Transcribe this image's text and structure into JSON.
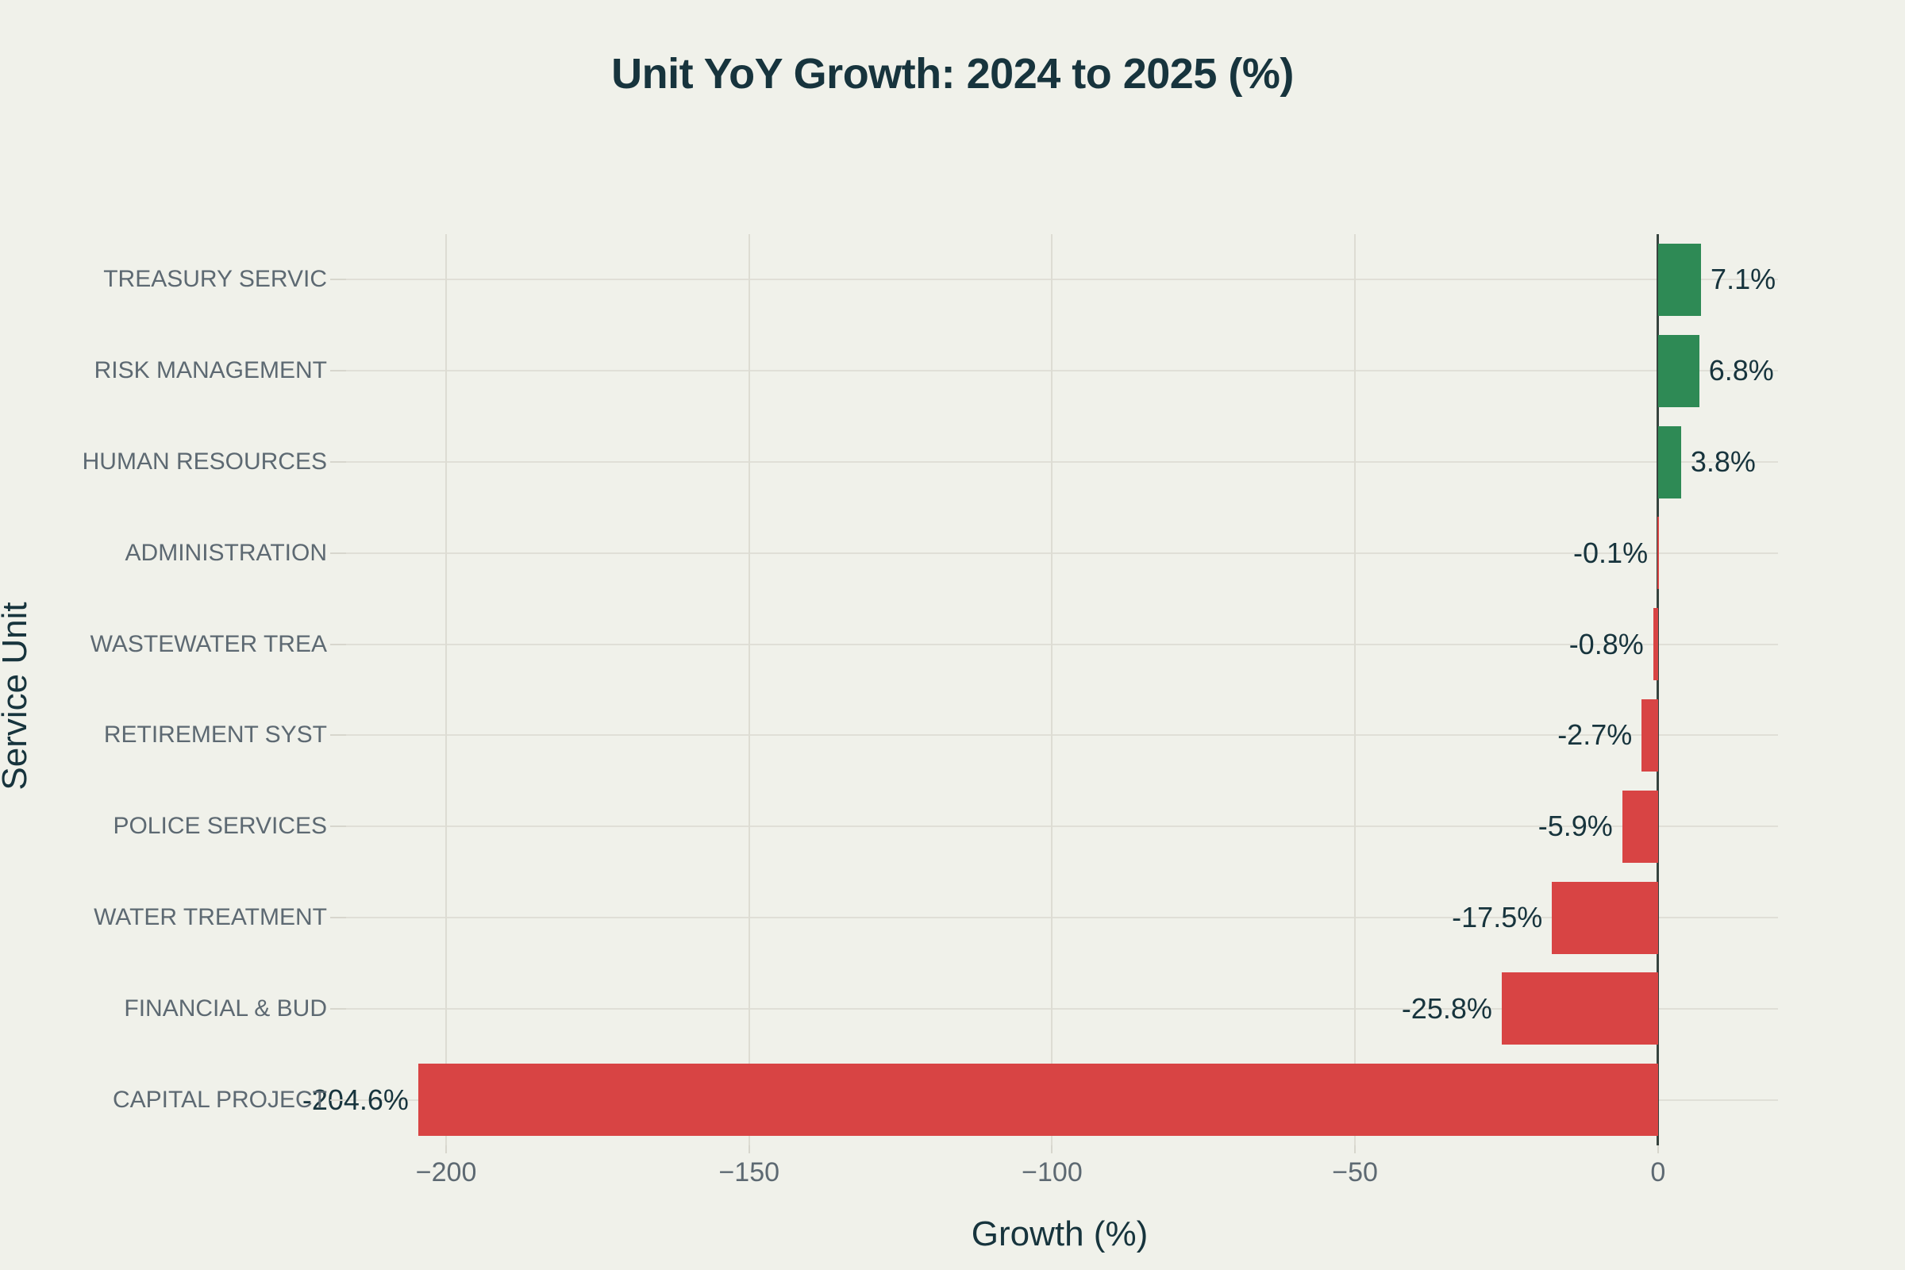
{
  "title": "Unit YoY Growth: 2024 to 2025 (%)",
  "axes": {
    "x_title": "Growth (%)",
    "y_title": "Service Unit"
  },
  "colors": {
    "background": "#f0f1ea",
    "positive_bar": "#2e8a55",
    "negative_bar": "#d84444",
    "grid": "#dddcd3",
    "zero_line": "#37443f",
    "title_text": "#17343d",
    "value_text": "#17343d",
    "tick_text": "#5d6972"
  },
  "chart_data": {
    "type": "bar",
    "orientation": "horizontal",
    "title": "Unit YoY Growth: 2024 to 2025 (%)",
    "xlabel": "Growth (%)",
    "ylabel": "Service Unit",
    "categories": [
      "TREASURY SERVIC",
      "RISK MANAGEMENT",
      "HUMAN RESOURCES",
      "ADMINISTRATION",
      "WASTEWATER TREA",
      "RETIREMENT SYST",
      "POLICE SERVICES",
      "WATER TREATMENT",
      "FINANCIAL & BUD",
      "CAPITAL PROJECT"
    ],
    "values": [
      7.1,
      6.8,
      3.8,
      -0.1,
      -0.8,
      -2.7,
      -5.9,
      -17.5,
      -25.8,
      -204.6
    ],
    "value_labels": [
      "7.1%",
      "6.8%",
      "3.8%",
      "-0.1%",
      "-0.8%",
      "-2.7%",
      "-5.9%",
      "-17.5%",
      "-25.8%",
      "-204.6%"
    ],
    "x_ticks": [
      -200,
      -150,
      -100,
      -50,
      0
    ],
    "x_tick_labels": [
      "−200",
      "−150",
      "−100",
      "−50",
      "0"
    ],
    "xlim": [
      -217.3,
      19.8
    ],
    "grid": true,
    "legend": "none",
    "bar_color_rule": "green if value >= 0 else red"
  }
}
